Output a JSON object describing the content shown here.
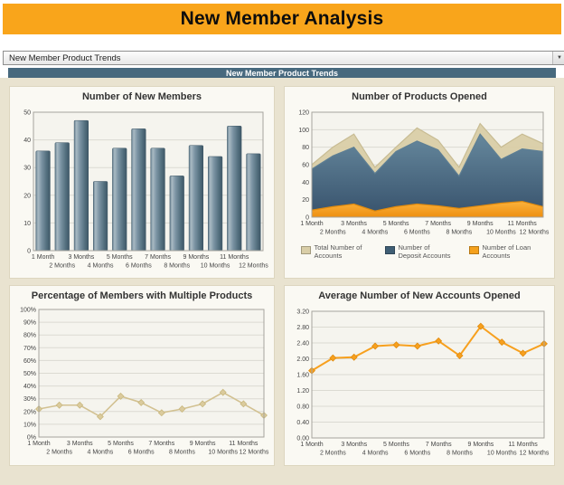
{
  "header": {
    "title": "New Member Analysis"
  },
  "selector": {
    "value": "New Member Product Trends",
    "chevron_icon": "▼"
  },
  "section": {
    "title": "New Member Product Trends"
  },
  "months": [
    "1 Month",
    "2 Months",
    "3 Months",
    "4 Months",
    "5 Months",
    "6 Months",
    "7 Months",
    "8 Months",
    "9 Months",
    "10 Months",
    "11 Months",
    "12 Months"
  ],
  "colors": {
    "header_bg": "#F9A51B",
    "section_bg": "#47697E",
    "page_bg": "#E9E3D0",
    "bar": "#5E7A8B",
    "total_area": "#D9CEA7",
    "deposit_area": "#3F5E74",
    "loan_area": "#F5A11D",
    "pct_line": "#D2C191",
    "avg_line": "#F7A01E"
  },
  "chart_data": [
    {
      "type": "bar",
      "title": "Number of New Members",
      "categories": [
        "1 Month",
        "2 Months",
        "3 Months",
        "4 Months",
        "5 Months",
        "6 Months",
        "7 Months",
        "8 Months",
        "9 Months",
        "10 Months",
        "11 Months",
        "12 Months"
      ],
      "values": [
        36,
        39,
        47,
        25,
        37,
        44,
        37,
        27,
        38,
        34,
        45,
        35
      ],
      "xlabel": "",
      "ylabel": "",
      "ylim": [
        0,
        50
      ],
      "ytick": 10,
      "grid": true,
      "legend": false
    },
    {
      "type": "area",
      "title": "Number of Products Opened",
      "categories": [
        "1 Month",
        "2 Months",
        "3 Months",
        "4 Months",
        "5 Months",
        "6 Months",
        "7 Months",
        "8 Months",
        "9 Months",
        "10 Months",
        "11 Months",
        "12 Months"
      ],
      "series": [
        {
          "name": "Total Number of Accounts",
          "color": "#D9CEA7",
          "values": [
            60,
            80,
            95,
            57,
            80,
            102,
            88,
            57,
            107,
            80,
            95,
            84
          ]
        },
        {
          "name": "Number of Deposit Accounts",
          "color": "#3F5E74",
          "values": [
            55,
            70,
            80,
            50,
            75,
            87,
            77,
            47,
            95,
            66,
            78,
            75
          ]
        },
        {
          "name": "Number of Loan Accounts",
          "color": "#F5A11D",
          "values": [
            8,
            12,
            15,
            7,
            12,
            15,
            13,
            10,
            13,
            16,
            18,
            12
          ]
        }
      ],
      "xlabel": "",
      "ylabel": "",
      "ylim": [
        0,
        120
      ],
      "ytick": 20,
      "grid": true,
      "legend": true,
      "legend_position": "bottom"
    },
    {
      "type": "line",
      "title": "Percentage of Members with Multiple Products",
      "categories": [
        "1 Month",
        "2 Months",
        "3 Months",
        "4 Months",
        "5 Months",
        "6 Months",
        "7 Months",
        "8 Months",
        "9 Months",
        "10 Months",
        "11 Months",
        "12 Months"
      ],
      "values": [
        22,
        25,
        25,
        16,
        32,
        27,
        19,
        22,
        26,
        35,
        26,
        17
      ],
      "xlabel": "",
      "ylabel": "",
      "ylim": [
        0,
        100
      ],
      "ytick": 10,
      "value_format": "percent",
      "grid": true,
      "legend": false
    },
    {
      "type": "line",
      "title": "Average Number of New Accounts Opened",
      "categories": [
        "1 Month",
        "2 Months",
        "3 Months",
        "4 Months",
        "5 Months",
        "6 Months",
        "7 Months",
        "8 Months",
        "9 Months",
        "10 Months",
        "11 Months",
        "12 Months"
      ],
      "values": [
        1.7,
        2.02,
        2.04,
        2.32,
        2.35,
        2.32,
        2.45,
        2.08,
        2.82,
        2.42,
        2.14,
        2.38
      ],
      "xlabel": "",
      "ylabel": "",
      "ylim": [
        0,
        3.2
      ],
      "ytick": 0.4,
      "value_format": "fixed2",
      "grid": true,
      "legend": false
    }
  ]
}
